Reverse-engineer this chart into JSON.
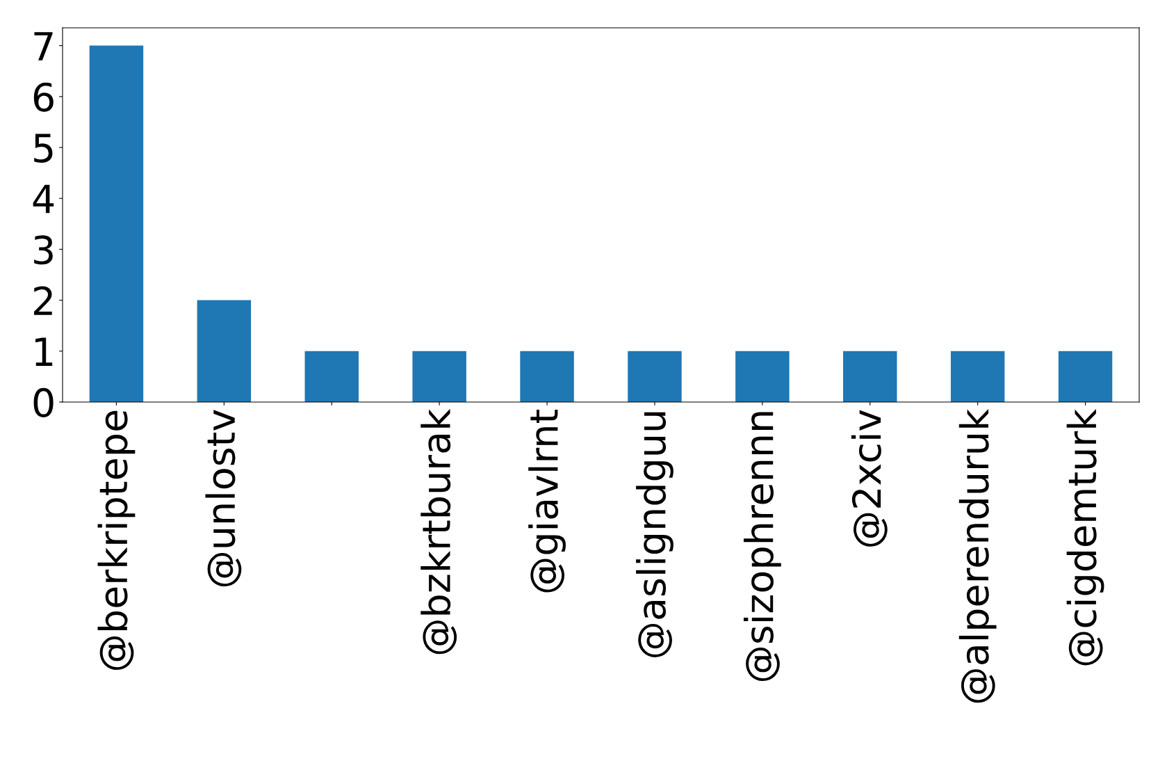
{
  "chart_data": {
    "type": "bar",
    "categories": [
      "@berkriptepe",
      "@unlostv",
      null,
      "@bzkrtburak",
      "@giavlrnt",
      "@asligndguu",
      "@sizophrennn",
      "@2xciv",
      "@alperenduruk",
      "@cigdemturk"
    ],
    "values": [
      7,
      2,
      1,
      1,
      1,
      1,
      1,
      1,
      1,
      1
    ],
    "color": "#1f77b4",
    "ylim": [
      0,
      7.35
    ],
    "yticks": [
      0,
      1,
      2,
      3,
      4,
      5,
      6,
      7
    ],
    "grid": false,
    "legend": false
  }
}
